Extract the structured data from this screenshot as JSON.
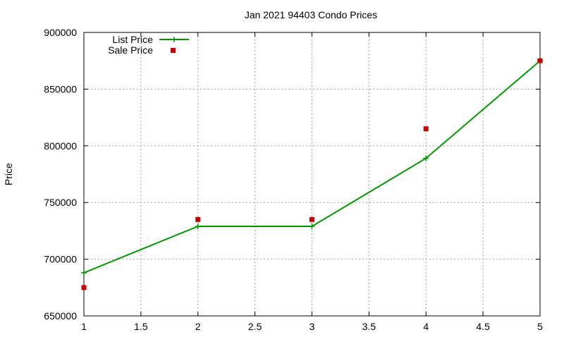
{
  "chart_data": {
    "type": "line",
    "title": "Jan 2021 94403 Condo Prices",
    "xlabel": "",
    "ylabel": "Price",
    "xlim": [
      1,
      5
    ],
    "ylim": [
      650000,
      900000
    ],
    "x_ticks": [
      "1",
      "1.5",
      "2",
      "2.5",
      "3",
      "3.5",
      "4",
      "4.5",
      "5"
    ],
    "y_ticks": [
      "650000",
      "700000",
      "750000",
      "800000",
      "850000",
      "900000"
    ],
    "grid": true,
    "legend_position": "top-left",
    "series": [
      {
        "name": "List Price",
        "style": "line-with-plus-markers",
        "color": "#009900",
        "points": [
          {
            "x": 1,
            "y": 688000
          },
          {
            "x": 2,
            "y": 729000
          },
          {
            "x": 3,
            "y": 729000
          },
          {
            "x": 4,
            "y": 789000
          },
          {
            "x": 5,
            "y": 875000
          }
        ]
      },
      {
        "name": "Sale Price",
        "style": "square-markers",
        "color": "#cc0000",
        "points": [
          {
            "x": 1,
            "y": 675000
          },
          {
            "x": 2,
            "y": 735000
          },
          {
            "x": 3,
            "y": 735000
          },
          {
            "x": 4,
            "y": 815000
          },
          {
            "x": 5,
            "y": 875000
          }
        ]
      }
    ]
  }
}
